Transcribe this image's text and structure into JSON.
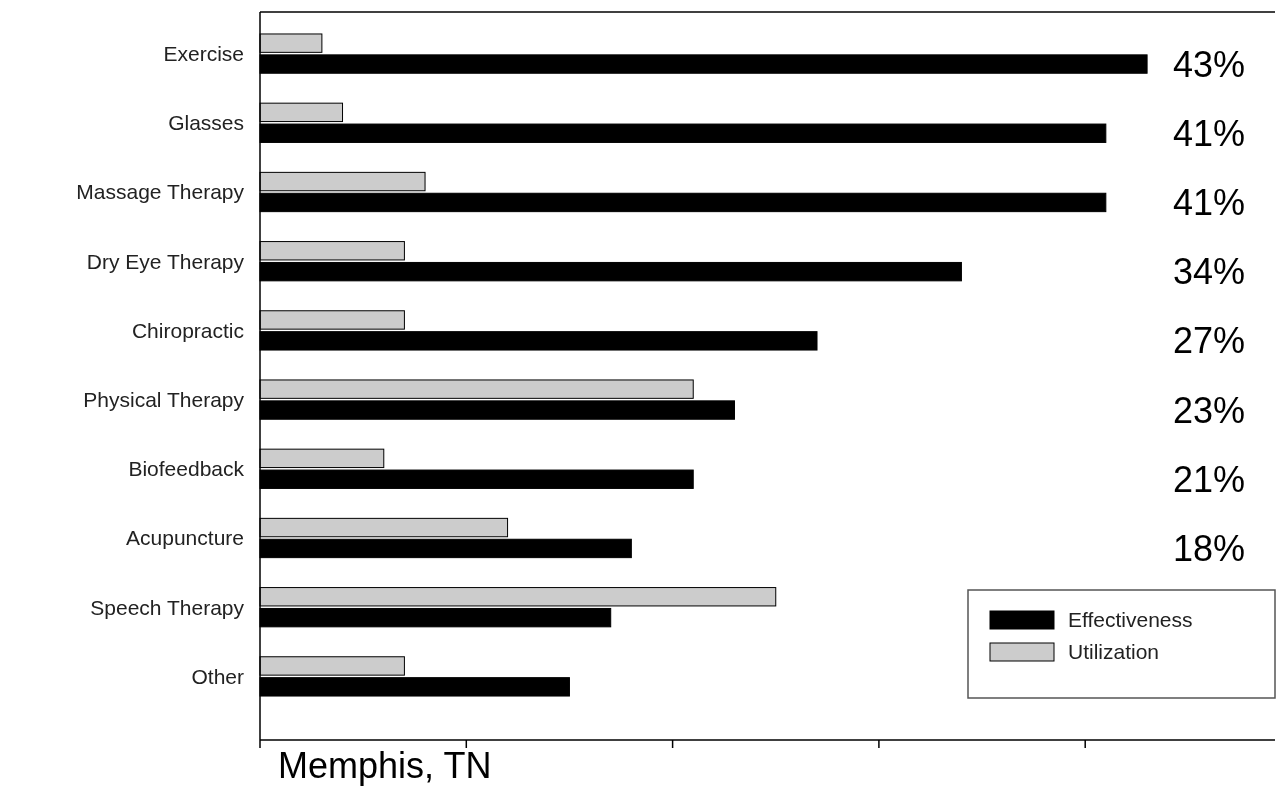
{
  "chart_data": {
    "type": "bar",
    "orientation": "horizontal",
    "categories": [
      "Exercise",
      "Glasses",
      "Massage Therapy",
      "Dry Eye Therapy",
      "Chiropractic",
      "Physical Therapy",
      "Biofeedback",
      "Acupuncture",
      "Speech Therapy",
      "Other"
    ],
    "series": [
      {
        "name": "Effectiveness",
        "color": "#000000",
        "values": [
          43,
          41,
          41,
          34,
          27,
          23,
          21,
          18,
          17,
          15
        ],
        "value_labels": [
          "43%",
          "41%",
          "41%",
          "34%",
          "27%",
          "23%",
          "21%",
          "18%",
          null,
          null
        ]
      },
      {
        "name": "Utilization",
        "color": "#cccccc",
        "values": [
          3,
          4,
          8,
          7,
          7,
          21,
          6,
          12,
          25,
          7
        ]
      }
    ],
    "xlim": [
      0,
      49.2
    ],
    "xticks": [
      {
        "value": 0,
        "label": null
      },
      {
        "value": 10,
        "label": null
      },
      {
        "value": 20,
        "label": null
      },
      {
        "value": 30,
        "label": null
      },
      {
        "value": 40,
        "label": null
      }
    ],
    "tick_labels": "y",
    "grid": false,
    "legend": "bottom right",
    "annotations": [
      "Memphis, TN"
    ]
  }
}
